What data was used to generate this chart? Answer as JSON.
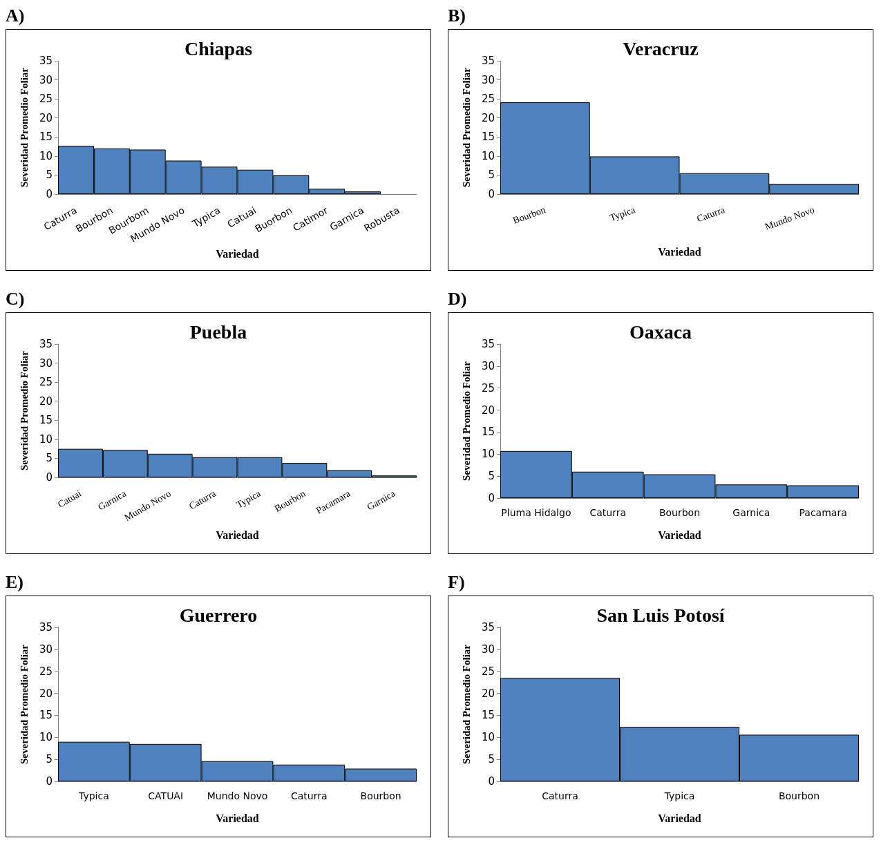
{
  "chart_data": [
    {
      "type": "bar",
      "title": "Chiapas",
      "annotations": [
        "A)"
      ],
      "xlabel": "Variedad",
      "ylabel": "Severidad Promedio Foliar",
      "categories": [
        "Caturra",
        "Bourbon",
        "Bourbom",
        "Mundo Novo",
        "Typica",
        "Catuai",
        "Buorbon",
        "Catimor",
        "Garnica",
        "Robusta"
      ],
      "values": [
        12.7,
        12.0,
        11.7,
        8.8,
        7.2,
        6.4,
        5.0,
        1.4,
        0.7,
        0
      ],
      "color": "#4f81bd",
      "ylim": [
        0,
        35
      ],
      "yticks": [
        0,
        5,
        10,
        15,
        20,
        25,
        30,
        35
      ],
      "grid": false
    },
    {
      "type": "bar",
      "title": "Veracruz",
      "annotations": [
        "B)"
      ],
      "xlabel": "Variedad",
      "ylabel": "Severidad Promedio Foliar",
      "categories": [
        "Bourbon",
        "Typica",
        "Caturra",
        "Mundo Novo"
      ],
      "values": [
        24.1,
        9.9,
        5.5,
        2.7
      ],
      "color": "#4f81bd",
      "ylim": [
        0,
        35
      ],
      "yticks": [
        0,
        5,
        10,
        15,
        20,
        25,
        30,
        35
      ],
      "grid": false
    },
    {
      "type": "bar",
      "title": "Puebla",
      "annotations": [
        "C)"
      ],
      "xlabel": "Variedad",
      "ylabel": "Severidad Promedio Foliar",
      "categories": [
        "Catuai",
        "Garnica",
        "Mundo Novo",
        "Caturra",
        "Typica",
        "Bourbon",
        "Pacamara",
        "Garnica"
      ],
      "values": [
        7.5,
        7.2,
        6.2,
        5.3,
        5.3,
        3.8,
        1.9,
        0.5
      ],
      "color": "#4f81bd",
      "ylim": [
        0,
        35
      ],
      "yticks": [
        0,
        5,
        10,
        15,
        20,
        25,
        30,
        35
      ],
      "grid": false
    },
    {
      "type": "bar",
      "title": "Oaxaca",
      "annotations": [
        "D)"
      ],
      "xlabel": "Variedad",
      "ylabel": "Severidad Promedio Foliar",
      "categories": [
        "Pluma Hidalgo",
        "Caturra",
        "Bourbon",
        "Garnica",
        "Pacamara"
      ],
      "values": [
        10.7,
        6.0,
        5.4,
        3.1,
        2.9
      ],
      "color": "#4f81bd",
      "ylim": [
        0,
        35
      ],
      "yticks": [
        0,
        5,
        10,
        15,
        20,
        25,
        30,
        35
      ],
      "grid": false
    },
    {
      "type": "bar",
      "title": "Guerrero",
      "annotations": [
        "E)"
      ],
      "xlabel": "Variedad",
      "ylabel": "Severidad Promedio Foliar",
      "categories": [
        "Typica",
        "CATUAI",
        "Mundo Novo",
        "Caturra",
        "Bourbon"
      ],
      "values": [
        9.0,
        8.5,
        4.6,
        3.8,
        2.9
      ],
      "color": "#4f81bd",
      "ylim": [
        0,
        35
      ],
      "yticks": [
        0,
        5,
        10,
        15,
        20,
        25,
        30,
        35
      ],
      "grid": false
    },
    {
      "type": "bar",
      "title": "San Luis Potosí",
      "annotations": [
        "F)"
      ],
      "xlabel": "Variedad",
      "ylabel": "Severidad Promedio Foliar",
      "categories": [
        "Caturra",
        "Typica",
        "Bourbon"
      ],
      "values": [
        23.5,
        12.4,
        10.6
      ],
      "color": "#4f81bd",
      "ylim": [
        0,
        35
      ],
      "yticks": [
        0,
        5,
        10,
        15,
        20,
        25,
        30,
        35
      ],
      "grid": false
    }
  ]
}
